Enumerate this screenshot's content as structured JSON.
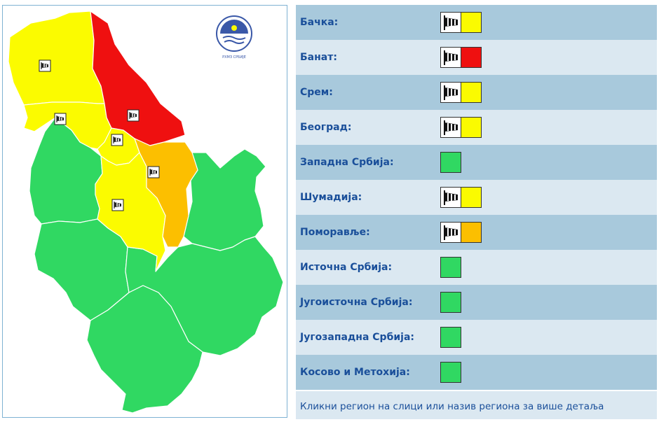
{
  "colors": {
    "green": "#30d862",
    "yellow": "#fbfb00",
    "orange": "#fcbf00",
    "red": "#ef1010"
  },
  "logo": {
    "caption": "РХМЗ СРБИЈЕ",
    "icon": "rhmz-logo-icon"
  },
  "regions": [
    {
      "key": "backa",
      "label": "Бачка:",
      "level": "yellow",
      "wind": true
    },
    {
      "key": "banat",
      "label": "Банат:",
      "level": "red",
      "wind": true
    },
    {
      "key": "srem",
      "label": "Срем:",
      "level": "yellow",
      "wind": true
    },
    {
      "key": "beograd",
      "label": "Београд:",
      "level": "yellow",
      "wind": true
    },
    {
      "key": "zapadna",
      "label": "Западна Србија:",
      "level": "green",
      "wind": false
    },
    {
      "key": "sumadija",
      "label": "Шумадија:",
      "level": "yellow",
      "wind": true
    },
    {
      "key": "pomoravlje",
      "label": "Поморавље:",
      "level": "orange",
      "wind": true
    },
    {
      "key": "istocna",
      "label": "Источна Србија:",
      "level": "green",
      "wind": false
    },
    {
      "key": "jugoistocna",
      "label": "Југоисточна Србија:",
      "level": "green",
      "wind": false
    },
    {
      "key": "jugozapadna",
      "label": "Југозападна Србија:",
      "level": "green",
      "wind": false
    },
    {
      "key": "kosovo",
      "label": "Косово и Метохија:",
      "level": "green",
      "wind": false
    }
  ],
  "wind_icon": "windsock-icon",
  "footer": "Кликни регион на слици или назив региона за више детаља"
}
